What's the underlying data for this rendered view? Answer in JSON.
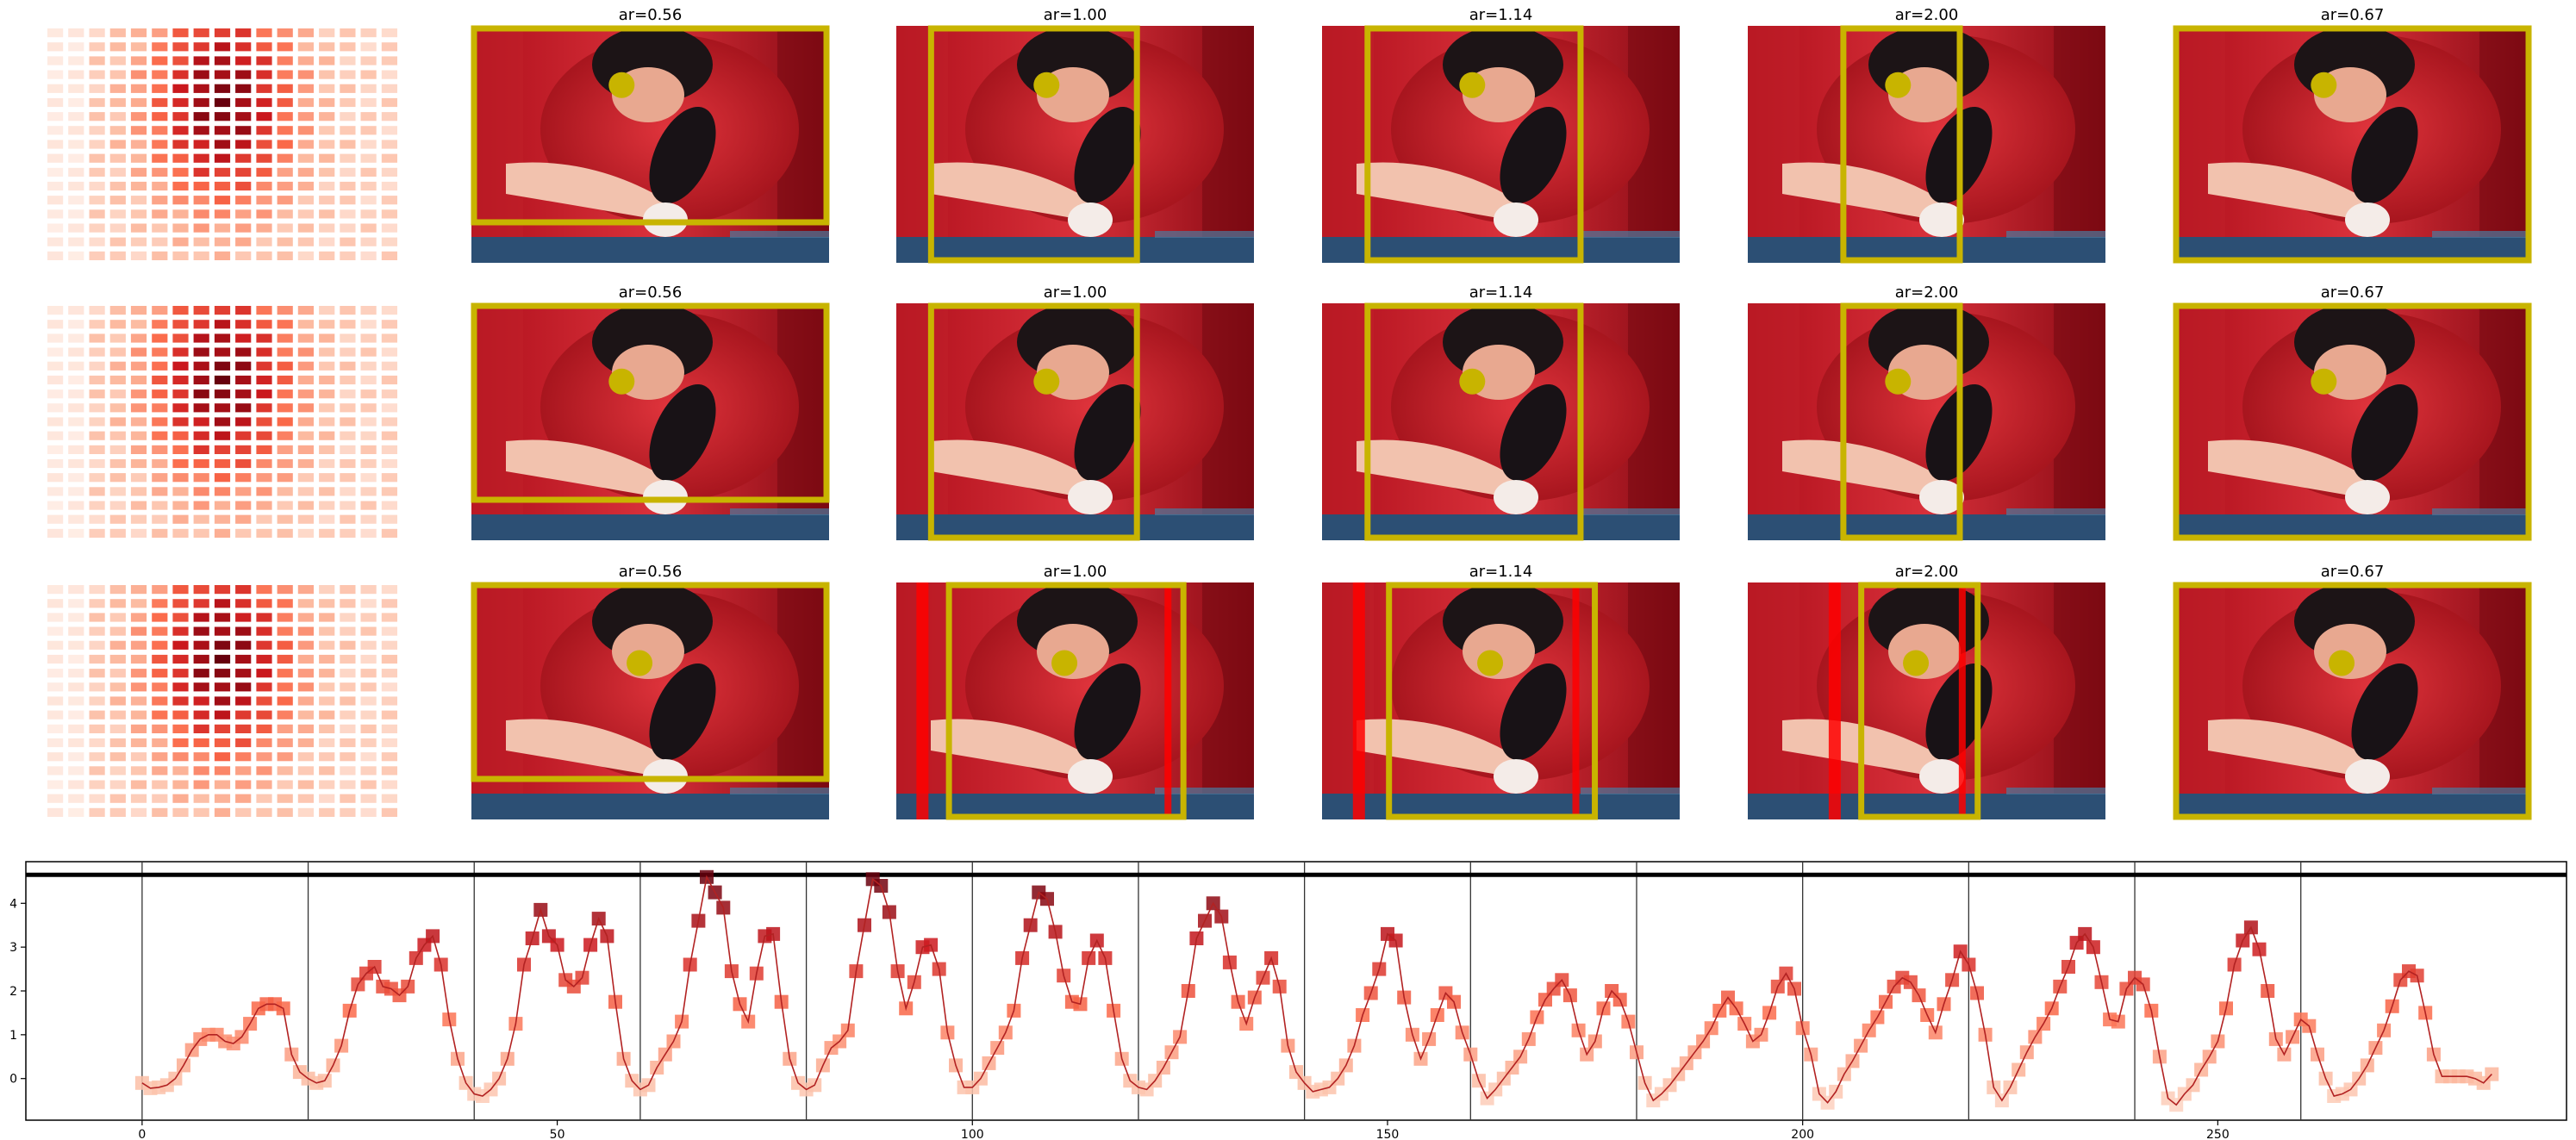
{
  "figure": {
    "panel_titles": [
      "ar=0.56",
      "ar=1.00",
      "ar=1.14",
      "ar=2.00",
      "ar=0.67"
    ],
    "heatmap_grid": {
      "rows": 17,
      "cols": 17
    },
    "colors": {
      "crop_box": "#c8b400",
      "center_dot": "#c8b400",
      "crop_edge": "#ff0000",
      "series_line": "#b22222",
      "axes": "#000000"
    }
  },
  "chart_data": {
    "type": "line",
    "x_ticks": [
      0,
      50,
      100,
      150,
      200,
      250
    ],
    "y_ticks": [
      0,
      1,
      2,
      3,
      4
    ],
    "xlim": [
      -14,
      292
    ],
    "ylim": [
      -0.95,
      4.95
    ],
    "segment_boundaries": [
      0,
      20,
      40,
      60,
      80,
      100,
      120,
      140,
      160,
      180,
      200,
      220,
      240,
      260
    ],
    "reference_line_y": 4.65,
    "grid": false,
    "legend": "none",
    "series": [
      {
        "marker": "square",
        "values": [
          -0.1,
          -0.22,
          -0.2,
          -0.15,
          0.0,
          0.3,
          0.65,
          0.9,
          1.0,
          1.0,
          0.85,
          0.8,
          0.95,
          1.25,
          1.6,
          1.7,
          1.7,
          1.6,
          0.55,
          0.15,
          0.0,
          -0.1,
          -0.05,
          0.3,
          0.75,
          1.55,
          2.15,
          2.4,
          2.55,
          2.1,
          2.05,
          1.9,
          2.1,
          2.75,
          3.05,
          3.25,
          2.6,
          1.35,
          0.45,
          -0.1,
          -0.35,
          -0.4,
          -0.25,
          0.0,
          0.45,
          1.25,
          2.6,
          3.2,
          3.85,
          3.25,
          3.05,
          2.25,
          2.1,
          2.3,
          3.05,
          3.65,
          3.25,
          1.75,
          0.45,
          -0.05,
          -0.25,
          -0.15,
          0.25,
          0.55,
          0.85,
          1.3,
          2.6,
          3.6,
          4.6,
          4.25,
          3.9,
          2.45,
          1.7,
          1.3,
          2.4,
          3.25,
          3.3,
          1.75,
          0.45,
          -0.1,
          -0.25,
          -0.15,
          0.3,
          0.7,
          0.85,
          1.1,
          2.45,
          3.5,
          4.55,
          4.4,
          3.8,
          2.45,
          1.6,
          2.2,
          3.0,
          3.05,
          2.5,
          1.05,
          0.3,
          -0.2,
          -0.2,
          0.0,
          0.35,
          0.7,
          1.05,
          1.55,
          2.75,
          3.5,
          4.25,
          4.1,
          3.35,
          2.35,
          1.75,
          1.7,
          2.75,
          3.15,
          2.75,
          1.55,
          0.45,
          -0.05,
          -0.2,
          -0.25,
          -0.05,
          0.25,
          0.6,
          0.95,
          2.0,
          3.2,
          3.6,
          4.0,
          3.7,
          2.65,
          1.75,
          1.25,
          1.85,
          2.3,
          2.75,
          2.1,
          0.75,
          0.15,
          -0.1,
          -0.3,
          -0.25,
          -0.2,
          0.0,
          0.3,
          0.75,
          1.45,
          1.95,
          2.5,
          3.3,
          3.15,
          1.85,
          1.0,
          0.45,
          0.9,
          1.45,
          1.95,
          1.75,
          1.05,
          0.55,
          -0.05,
          -0.45,
          -0.25,
          0.0,
          0.25,
          0.5,
          0.9,
          1.4,
          1.8,
          2.05,
          2.25,
          1.9,
          1.1,
          0.55,
          0.85,
          1.6,
          2.0,
          1.8,
          1.3,
          0.6,
          -0.1,
          -0.5,
          -0.35,
          -0.15,
          0.1,
          0.35,
          0.6,
          0.85,
          1.15,
          1.55,
          1.85,
          1.6,
          1.25,
          0.85,
          1.0,
          1.5,
          2.1,
          2.4,
          2.05,
          1.15,
          0.55,
          -0.35,
          -0.55,
          -0.3,
          0.1,
          0.4,
          0.75,
          1.1,
          1.4,
          1.75,
          2.1,
          2.3,
          2.2,
          1.9,
          1.45,
          1.05,
          1.7,
          2.25,
          2.9,
          2.6,
          1.95,
          1.0,
          -0.2,
          -0.5,
          -0.2,
          0.2,
          0.6,
          0.95,
          1.25,
          1.6,
          2.1,
          2.55,
          3.1,
          3.3,
          3.0,
          2.2,
          1.35,
          1.3,
          2.05,
          2.3,
          2.15,
          1.55,
          0.5,
          -0.45,
          -0.6,
          -0.35,
          -0.15,
          0.2,
          0.5,
          0.85,
          1.6,
          2.6,
          3.15,
          3.45,
          2.95,
          2.0,
          0.9,
          0.55,
          0.95,
          1.35,
          1.2,
          0.55,
          0.0,
          -0.4,
          -0.35,
          -0.25,
          0.0,
          0.3,
          0.7,
          1.1,
          1.65,
          2.25,
          2.45,
          2.35,
          1.5,
          0.55,
          0.05,
          0.05,
          0.05,
          0.05,
          0.0,
          -0.1,
          0.1
        ]
      }
    ]
  }
}
